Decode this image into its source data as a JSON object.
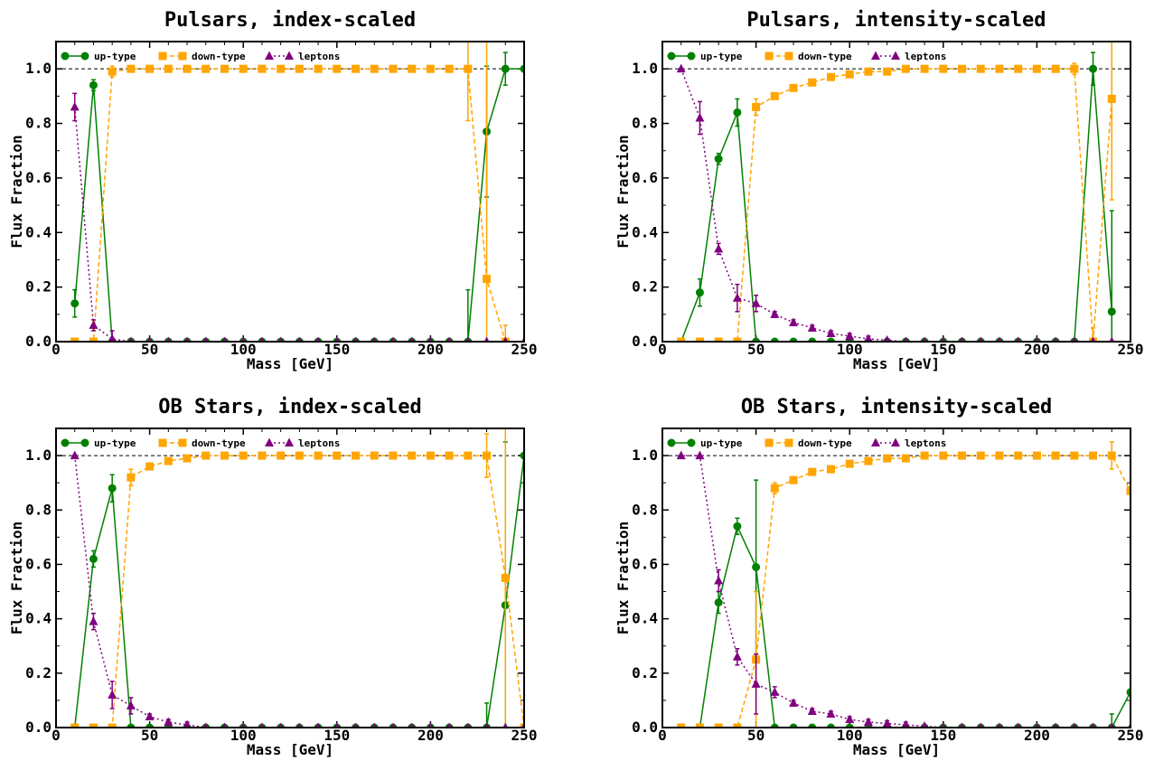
{
  "colors": {
    "up": "#008000",
    "down": "#FFA500",
    "leptons": "#800080",
    "refline": "#000000"
  },
  "chart_data": [
    {
      "type": "line",
      "title": "Pulsars, index-scaled",
      "xlabel": "Mass [GeV]",
      "ylabel": "Flux Fraction",
      "xlim": [
        0,
        250
      ],
      "ylim": [
        0,
        1.1
      ],
      "xticks": [
        "0",
        "50",
        "100",
        "150",
        "200",
        "250"
      ],
      "yticks": [
        "0.0",
        "0.2",
        "0.4",
        "0.6",
        "0.8",
        "1.0"
      ],
      "legend": {
        "placement": "top-left",
        "entries": [
          "up-type",
          "down-type",
          "leptons"
        ]
      },
      "reference_line": 1.0,
      "x": [
        10,
        20,
        30,
        40,
        50,
        60,
        70,
        80,
        90,
        100,
        110,
        120,
        130,
        140,
        150,
        160,
        170,
        180,
        190,
        200,
        210,
        220,
        230,
        240,
        250
      ],
      "series": [
        {
          "name": "up-type",
          "values": [
            0.14,
            0.94,
            0,
            0,
            0,
            0,
            0,
            0,
            0,
            0,
            0,
            0,
            0,
            0,
            0,
            0,
            0,
            0,
            0,
            0,
            0,
            0,
            0.77,
            1.0,
            1.0
          ],
          "errors": [
            0.05,
            0.02,
            0,
            0,
            0,
            0,
            0,
            0,
            0,
            0,
            0,
            0,
            0,
            0,
            0,
            0,
            0,
            0,
            0,
            0,
            0,
            0.19,
            0.24,
            0.06,
            0
          ]
        },
        {
          "name": "down-type",
          "values": [
            0,
            0,
            0.99,
            1.0,
            1.0,
            1.0,
            1.0,
            1.0,
            1.0,
            1.0,
            1.0,
            1.0,
            1.0,
            1.0,
            1.0,
            1.0,
            1.0,
            1.0,
            1.0,
            1.0,
            1.0,
            1.0,
            0.23,
            0,
            null
          ],
          "errors": [
            0,
            0,
            0.02,
            0,
            0,
            0,
            0,
            0,
            0,
            0,
            0,
            0,
            0,
            0,
            0,
            0,
            0,
            0,
            0,
            0,
            0,
            0.19,
            0.9,
            0.06,
            0
          ]
        },
        {
          "name": "leptons",
          "values": [
            0.86,
            0.06,
            0.01,
            0,
            0,
            0,
            0,
            0,
            0,
            0,
            0,
            0,
            0,
            0,
            0,
            0,
            0,
            0,
            0,
            0,
            0,
            0,
            0,
            0,
            0
          ],
          "errors": [
            0.05,
            0.02,
            0.03,
            0,
            0,
            0,
            0,
            0,
            0,
            0,
            0,
            0,
            0,
            0,
            0,
            0,
            0,
            0,
            0,
            0,
            0,
            0,
            0,
            0,
            0
          ]
        }
      ]
    },
    {
      "type": "line",
      "title": "Pulsars, intensity-scaled",
      "xlabel": "Mass [GeV]",
      "ylabel": "Flux Fraction",
      "xlim": [
        0,
        250
      ],
      "ylim": [
        0,
        1.1
      ],
      "xticks": [
        "0",
        "50",
        "100",
        "150",
        "200",
        "250"
      ],
      "yticks": [
        "0.0",
        "0.2",
        "0.4",
        "0.6",
        "0.8",
        "1.0"
      ],
      "legend": {
        "placement": "top-left",
        "entries": [
          "up-type",
          "down-type",
          "leptons"
        ]
      },
      "reference_line": 1.0,
      "x": [
        10,
        20,
        30,
        40,
        50,
        60,
        70,
        80,
        90,
        100,
        110,
        120,
        130,
        140,
        150,
        160,
        170,
        180,
        190,
        200,
        210,
        220,
        230,
        240
      ],
      "series": [
        {
          "name": "up-type",
          "values": [
            0,
            0.18,
            0.67,
            0.84,
            0,
            0,
            0,
            0,
            0,
            0,
            0,
            0,
            0,
            0,
            0,
            0,
            0,
            0,
            0,
            0,
            0,
            0,
            1.0,
            0.11
          ],
          "errors": [
            0,
            0.05,
            0.02,
            0.05,
            0,
            0,
            0,
            0,
            0,
            0,
            0,
            0,
            0,
            0,
            0,
            0,
            0,
            0,
            0,
            0,
            0,
            0.01,
            0.06,
            0.37
          ]
        },
        {
          "name": "down-type",
          "values": [
            0,
            0,
            0,
            0,
            0.86,
            0.9,
            0.93,
            0.95,
            0.97,
            0.98,
            0.99,
            0.99,
            1.0,
            1.0,
            1.0,
            1.0,
            1.0,
            1.0,
            1.0,
            1.0,
            1.0,
            1.0,
            0,
            0.89
          ],
          "errors": [
            0,
            0,
            0,
            0,
            0.03,
            0.01,
            0.01,
            0.01,
            0.01,
            0.01,
            0.01,
            0,
            0,
            0,
            0,
            0,
            0,
            0,
            0,
            0,
            0,
            0.02,
            0.05,
            0.37
          ]
        },
        {
          "name": "leptons",
          "values": [
            1.0,
            0.82,
            0.34,
            0.16,
            0.14,
            0.1,
            0.07,
            0.05,
            0.03,
            0.02,
            0.01,
            0.005,
            0,
            0,
            0,
            0,
            0,
            0,
            0,
            0,
            0,
            0,
            0,
            0
          ],
          "errors": [
            0,
            0.06,
            0.02,
            0.05,
            0.03,
            0.01,
            0.01,
            0.01,
            0.01,
            0.01,
            0.01,
            0,
            0,
            0,
            0,
            0,
            0,
            0,
            0,
            0,
            0,
            0,
            0,
            0
          ]
        }
      ]
    },
    {
      "type": "line",
      "title": "OB Stars, index-scaled",
      "xlabel": "Mass [GeV]",
      "ylabel": "Flux Fraction",
      "xlim": [
        0,
        250
      ],
      "ylim": [
        0,
        1.1
      ],
      "xticks": [
        "0",
        "50",
        "100",
        "150",
        "200",
        "250"
      ],
      "yticks": [
        "0.0",
        "0.2",
        "0.4",
        "0.6",
        "0.8",
        "1.0"
      ],
      "legend": {
        "placement": "top-left",
        "entries": [
          "up-type",
          "down-type",
          "leptons"
        ]
      },
      "reference_line": 1.0,
      "x": [
        10,
        20,
        30,
        40,
        50,
        60,
        70,
        80,
        90,
        100,
        110,
        120,
        130,
        140,
        150,
        160,
        170,
        180,
        190,
        200,
        210,
        220,
        230,
        240,
        250
      ],
      "series": [
        {
          "name": "up-type",
          "values": [
            0,
            0.62,
            0.88,
            0,
            0,
            0,
            0,
            0,
            0,
            0,
            0,
            0,
            0,
            0,
            0,
            0,
            0,
            0,
            0,
            0,
            0,
            0,
            0,
            0.45,
            1.0
          ],
          "errors": [
            0,
            0.03,
            0.05,
            0,
            0,
            0,
            0,
            0,
            0,
            0,
            0,
            0,
            0,
            0,
            0,
            0,
            0,
            0,
            0,
            0,
            0,
            0,
            0.09,
            0.6,
            0
          ]
        },
        {
          "name": "down-type",
          "values": [
            0,
            0,
            0,
            0.92,
            0.96,
            0.98,
            0.99,
            1.0,
            1.0,
            1.0,
            1.0,
            1.0,
            1.0,
            1.0,
            1.0,
            1.0,
            1.0,
            1.0,
            1.0,
            1.0,
            1.0,
            1.0,
            1.0,
            0.55,
            0
          ],
          "errors": [
            0,
            0,
            0,
            0.03,
            0.01,
            0.01,
            0,
            0,
            0,
            0,
            0,
            0,
            0,
            0,
            0,
            0,
            0,
            0,
            0,
            0,
            0,
            0,
            0.08,
            0.6,
            0
          ]
        },
        {
          "name": "leptons",
          "values": [
            1.0,
            0.39,
            0.12,
            0.08,
            0.04,
            0.02,
            0.01,
            0,
            0,
            0,
            0,
            0,
            0,
            0,
            0,
            0,
            0,
            0,
            0,
            0,
            0,
            0,
            0,
            0,
            0
          ],
          "errors": [
            0,
            0.03,
            0.05,
            0.03,
            0.01,
            0.01,
            0.01,
            0,
            0,
            0,
            0,
            0,
            0,
            0,
            0,
            0,
            0,
            0,
            0,
            0,
            0,
            0,
            0,
            0,
            0
          ]
        }
      ]
    },
    {
      "type": "line",
      "title": "OB Stars, intensity-scaled",
      "xlabel": "Mass [GeV]",
      "ylabel": "Flux Fraction",
      "xlim": [
        0,
        250
      ],
      "ylim": [
        0,
        1.1
      ],
      "xticks": [
        "0",
        "50",
        "100",
        "150",
        "200",
        "250"
      ],
      "yticks": [
        "0.0",
        "0.2",
        "0.4",
        "0.6",
        "0.8",
        "1.0"
      ],
      "legend": {
        "placement": "top-left",
        "entries": [
          "up-type",
          "down-type",
          "leptons"
        ]
      },
      "reference_line": 1.0,
      "x": [
        10,
        20,
        30,
        40,
        50,
        60,
        70,
        80,
        90,
        100,
        110,
        120,
        130,
        140,
        150,
        160,
        170,
        180,
        190,
        200,
        210,
        220,
        230,
        240,
        250
      ],
      "series": [
        {
          "name": "up-type",
          "values": [
            0,
            0,
            0.46,
            0.74,
            0.59,
            0,
            0,
            0,
            0,
            0,
            0,
            0,
            0,
            0,
            0,
            0,
            0,
            0,
            0,
            0,
            0,
            0,
            0,
            0,
            0.13
          ],
          "errors": [
            0,
            0,
            0.04,
            0.03,
            0.32,
            0,
            0,
            0,
            0,
            0,
            0,
            0,
            0,
            0,
            0,
            0,
            0,
            0,
            0,
            0,
            0,
            0,
            0,
            0.05,
            0
          ]
        },
        {
          "name": "down-type",
          "values": [
            0,
            0,
            0,
            0,
            0.25,
            0.88,
            0.91,
            0.94,
            0.95,
            0.97,
            0.98,
            0.99,
            0.99,
            1.0,
            1.0,
            1.0,
            1.0,
            1.0,
            1.0,
            1.0,
            1.0,
            1.0,
            1.0,
            1.0,
            0.87
          ],
          "errors": [
            0,
            0,
            0,
            0,
            0.25,
            0.02,
            0.01,
            0.01,
            0.01,
            0.01,
            0.01,
            0.01,
            0,
            0,
            0,
            0,
            0,
            0,
            0,
            0,
            0,
            0,
            0,
            0.05,
            0
          ]
        },
        {
          "name": "leptons",
          "values": [
            1.0,
            1.0,
            0.54,
            0.26,
            0.16,
            0.13,
            0.09,
            0.06,
            0.05,
            0.03,
            0.02,
            0.015,
            0.01,
            0.005,
            0,
            0,
            0,
            0,
            0,
            0,
            0,
            0,
            0,
            0,
            0
          ],
          "errors": [
            0,
            0,
            0.04,
            0.03,
            0.11,
            0.02,
            0.01,
            0.01,
            0.01,
            0.01,
            0.01,
            0.01,
            0.01,
            0,
            0,
            0,
            0,
            0,
            0,
            0,
            0,
            0,
            0,
            0,
            0
          ]
        }
      ]
    }
  ]
}
